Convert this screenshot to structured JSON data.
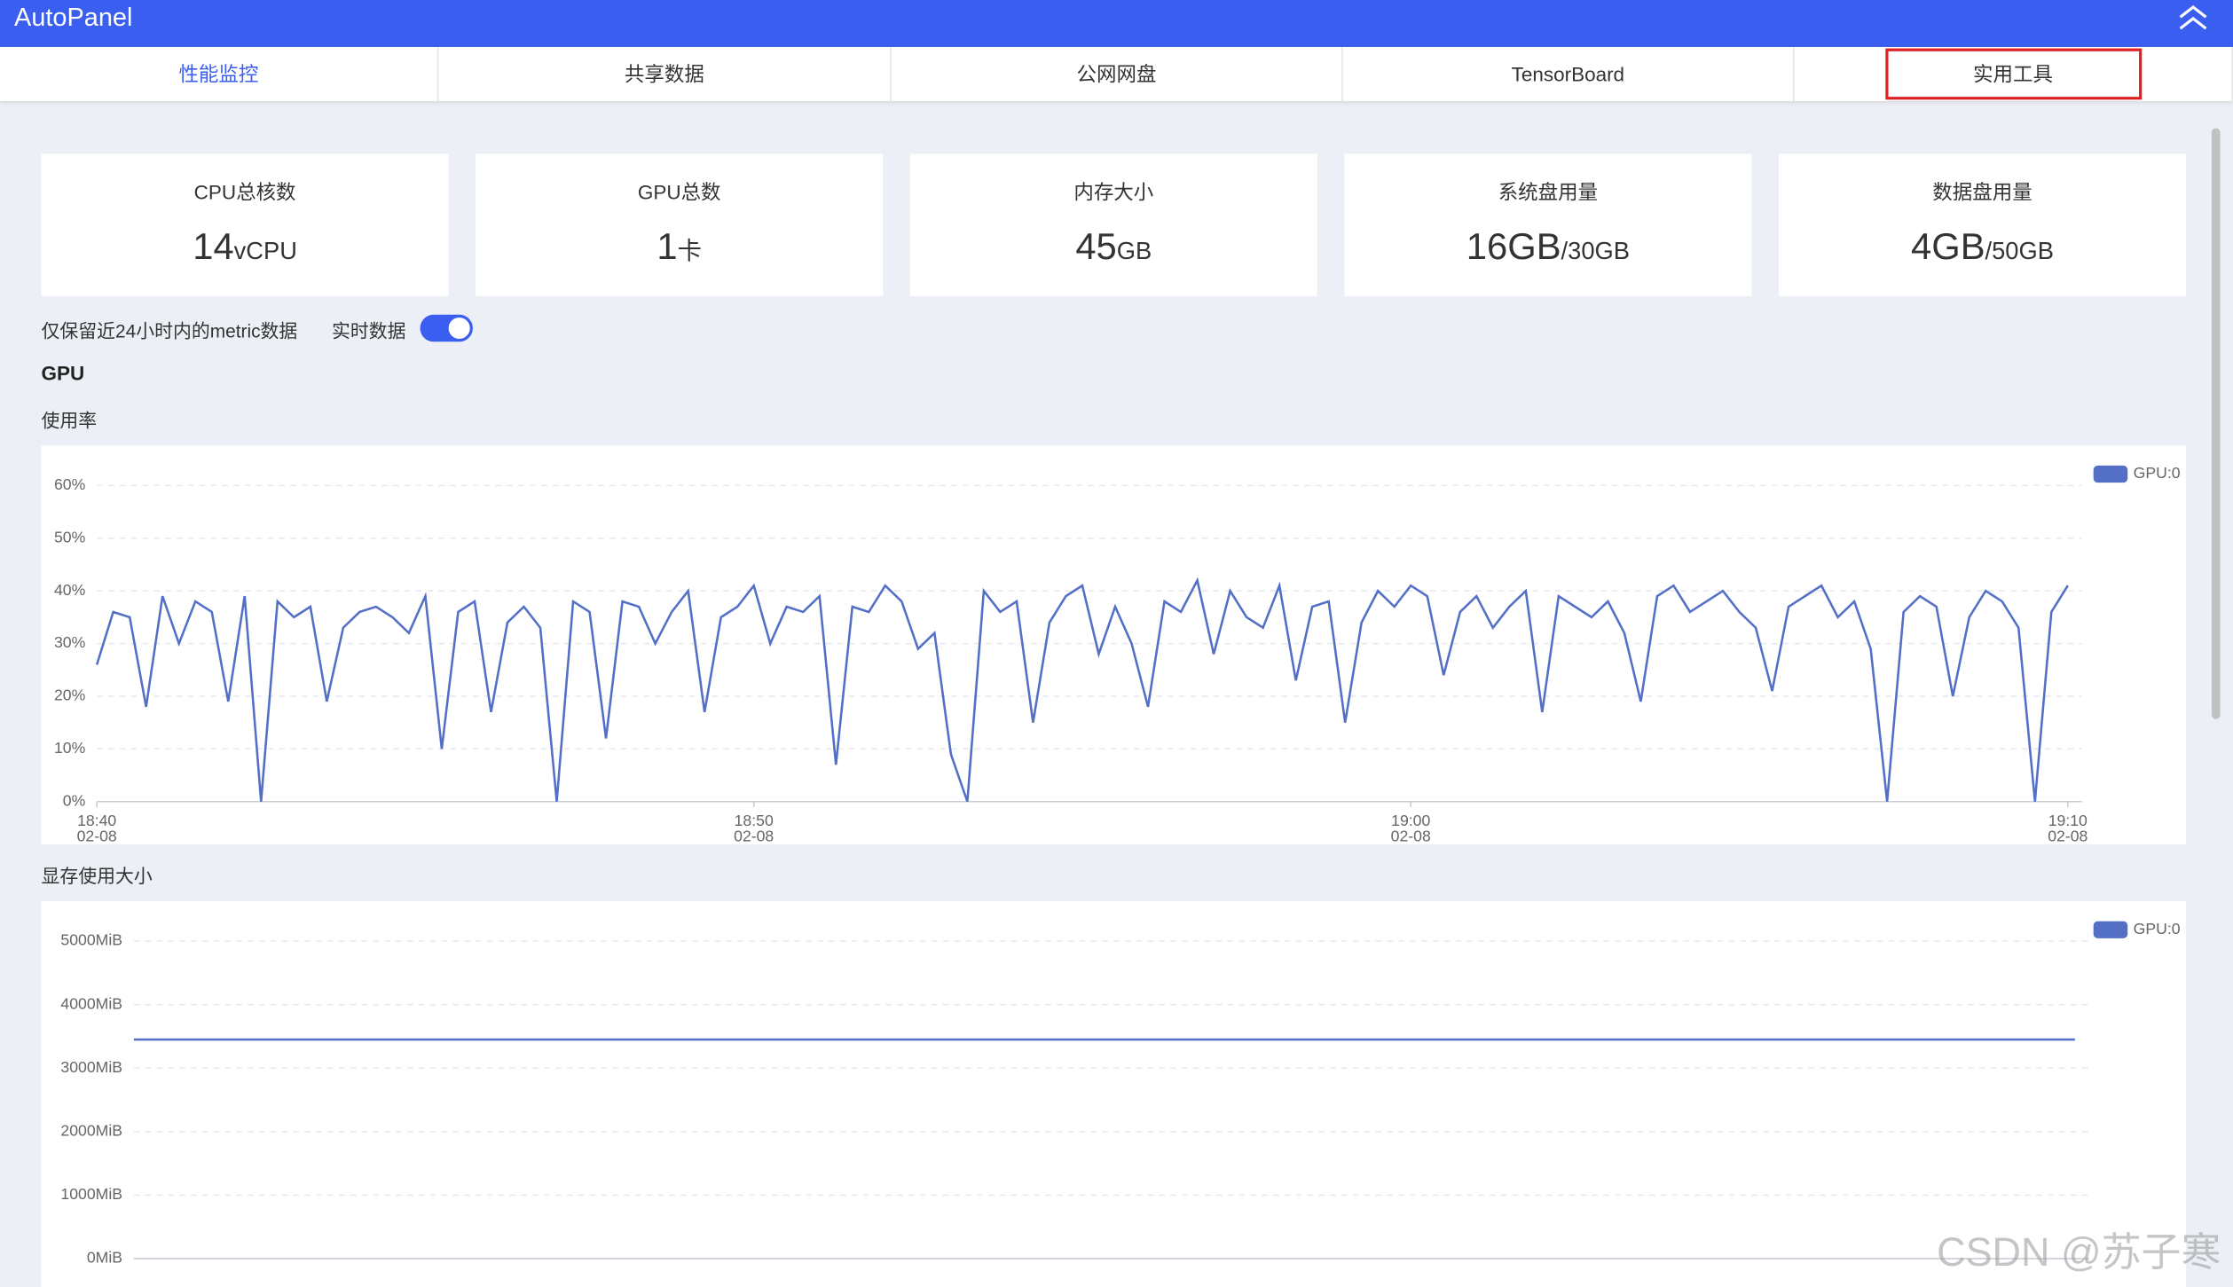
{
  "header": {
    "title": "AutoPanel"
  },
  "tabs": {
    "items": [
      "性能监控",
      "共享数据",
      "公网网盘",
      "TensorBoard",
      "实用工具"
    ],
    "active_tab": 0,
    "outlined_tab": 4
  },
  "cards": [
    {
      "label": "CPU总核数",
      "value": "14",
      "unit": "vCPU"
    },
    {
      "label": "GPU总数",
      "value": "1",
      "unit": "卡"
    },
    {
      "label": "内存大小",
      "value": "45",
      "unit": "GB"
    },
    {
      "label": "系统盘用量",
      "value": "16GB",
      "unit": "/30GB"
    },
    {
      "label": "数据盘用量",
      "value": "4GB",
      "unit": "/50GB"
    }
  ],
  "notice": "仅保留近24小时内的metric数据",
  "realtime": {
    "label": "实时数据",
    "on": true
  },
  "section": "GPU",
  "chart_titles": [
    "使用率",
    "显存使用大小"
  ],
  "watermark": "CSDN @苏子寒",
  "chart_data": [
    {
      "type": "line",
      "series": [
        {
          "name": "GPU:0",
          "color": "#5470c6",
          "values": [
            26,
            36,
            35,
            18,
            39,
            30,
            38,
            36,
            19,
            39,
            0,
            38,
            35,
            37,
            19,
            33,
            36,
            37,
            35,
            32,
            39,
            10,
            36,
            38,
            17,
            34,
            37,
            33,
            0,
            38,
            36,
            12,
            38,
            37,
            30,
            36,
            40,
            17,
            35,
            37,
            41,
            30,
            37,
            36,
            39,
            7,
            37,
            36,
            41,
            38,
            29,
            32,
            9,
            0,
            40,
            36,
            38,
            15,
            34,
            39,
            41,
            28,
            37,
            30,
            18,
            38,
            36,
            42,
            28,
            40,
            35,
            33,
            41,
            23,
            37,
            38,
            15,
            34,
            40,
            37,
            41,
            39,
            24,
            36,
            39,
            33,
            37,
            40,
            17,
            39,
            37,
            35,
            38,
            32,
            19,
            39,
            41,
            36,
            38,
            40,
            36,
            33,
            21,
            37,
            39,
            41,
            35,
            38,
            29,
            0,
            36,
            39,
            37,
            20,
            35,
            40,
            38,
            33,
            0,
            36,
            41
          ]
        }
      ],
      "xlim": [
        0,
        120
      ],
      "xticks": [
        {
          "value": 0,
          "label": "18:40",
          "date": "02-08"
        },
        {
          "value": 40,
          "label": "18:50",
          "date": "02-08"
        },
        {
          "value": 80,
          "label": "19:00",
          "date": "02-08"
        },
        {
          "value": 120,
          "label": "19:10",
          "date": "02-08"
        }
      ],
      "ylim": [
        0,
        60
      ],
      "yticks": [
        {
          "value": 0,
          "label": "0%"
        },
        {
          "value": 10,
          "label": "10%"
        },
        {
          "value": 20,
          "label": "20%"
        },
        {
          "value": 30,
          "label": "30%"
        },
        {
          "value": 40,
          "label": "40%"
        },
        {
          "value": 50,
          "label": "50%"
        },
        {
          "value": 60,
          "label": "60%"
        }
      ],
      "grid": true,
      "legend": "top-right"
    },
    {
      "type": "line",
      "series": [
        {
          "name": "GPU:0",
          "color": "#5470c6",
          "values": [
            3450,
            3450,
            3450,
            3450,
            3450,
            3450,
            3450,
            3450,
            3450,
            3450,
            3450,
            3450,
            3450,
            3450,
            3450,
            3450,
            3450,
            3450,
            3450,
            3450,
            3450,
            3450,
            3450,
            3450,
            3450,
            3450,
            3450,
            3450,
            3450,
            3450,
            3450
          ]
        }
      ],
      "xlim": [
        0,
        30
      ],
      "ylim": [
        0,
        5000
      ],
      "yticks": [
        {
          "value": 0,
          "label": "0MiB"
        },
        {
          "value": 1000,
          "label": "1000MiB"
        },
        {
          "value": 2000,
          "label": "2000MiB"
        },
        {
          "value": 3000,
          "label": "3000MiB"
        },
        {
          "value": 4000,
          "label": "4000MiB"
        },
        {
          "value": 5000,
          "label": "5000MiB"
        }
      ],
      "grid": true,
      "legend": "top-right"
    }
  ]
}
